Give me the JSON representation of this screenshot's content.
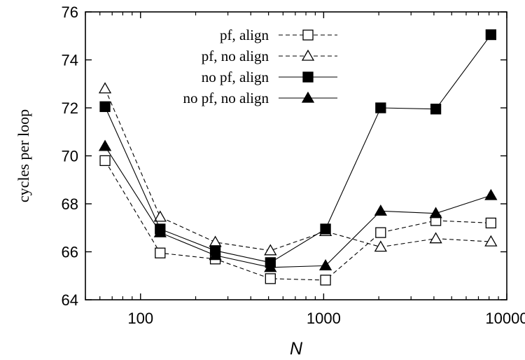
{
  "chart_data": {
    "type": "line",
    "title": "",
    "xlabel": "N",
    "ylabel": "cycles per loop",
    "xscale": "log",
    "xlim": [
      50,
      10000
    ],
    "ylim": [
      64,
      76
    ],
    "xticks": [
      100,
      1000,
      10000
    ],
    "xtick_labels": [
      "100",
      "1000",
      "10000"
    ],
    "yticks": [
      64,
      66,
      68,
      70,
      72,
      74,
      76
    ],
    "ytick_labels": [
      "64",
      "66",
      "68",
      "70",
      "72",
      "74",
      "76"
    ],
    "grid": false,
    "legend_position": "top-center",
    "x": [
      64,
      128,
      256,
      512,
      1024,
      2048,
      4096,
      8192
    ],
    "series": [
      {
        "name": "pf, align",
        "marker": "open-square",
        "line": "dashed",
        "values": [
          69.8,
          65.95,
          65.7,
          64.88,
          64.82,
          66.8,
          67.3,
          67.2
        ]
      },
      {
        "name": "pf, no align",
        "marker": "open-triangle",
        "line": "dashed",
        "values": [
          72.8,
          67.45,
          66.4,
          66.05,
          66.85,
          66.2,
          66.55,
          66.42
        ]
      },
      {
        "name": "no pf, align",
        "marker": "filled-square",
        "line": "solid",
        "values": [
          72.05,
          66.95,
          66.05,
          65.55,
          66.95,
          72.0,
          71.95,
          75.05
        ]
      },
      {
        "name": "no pf, no align",
        "marker": "filled-triangle",
        "line": "solid",
        "values": [
          70.4,
          66.8,
          65.85,
          65.35,
          65.42,
          67.7,
          67.6,
          68.35
        ]
      }
    ]
  }
}
